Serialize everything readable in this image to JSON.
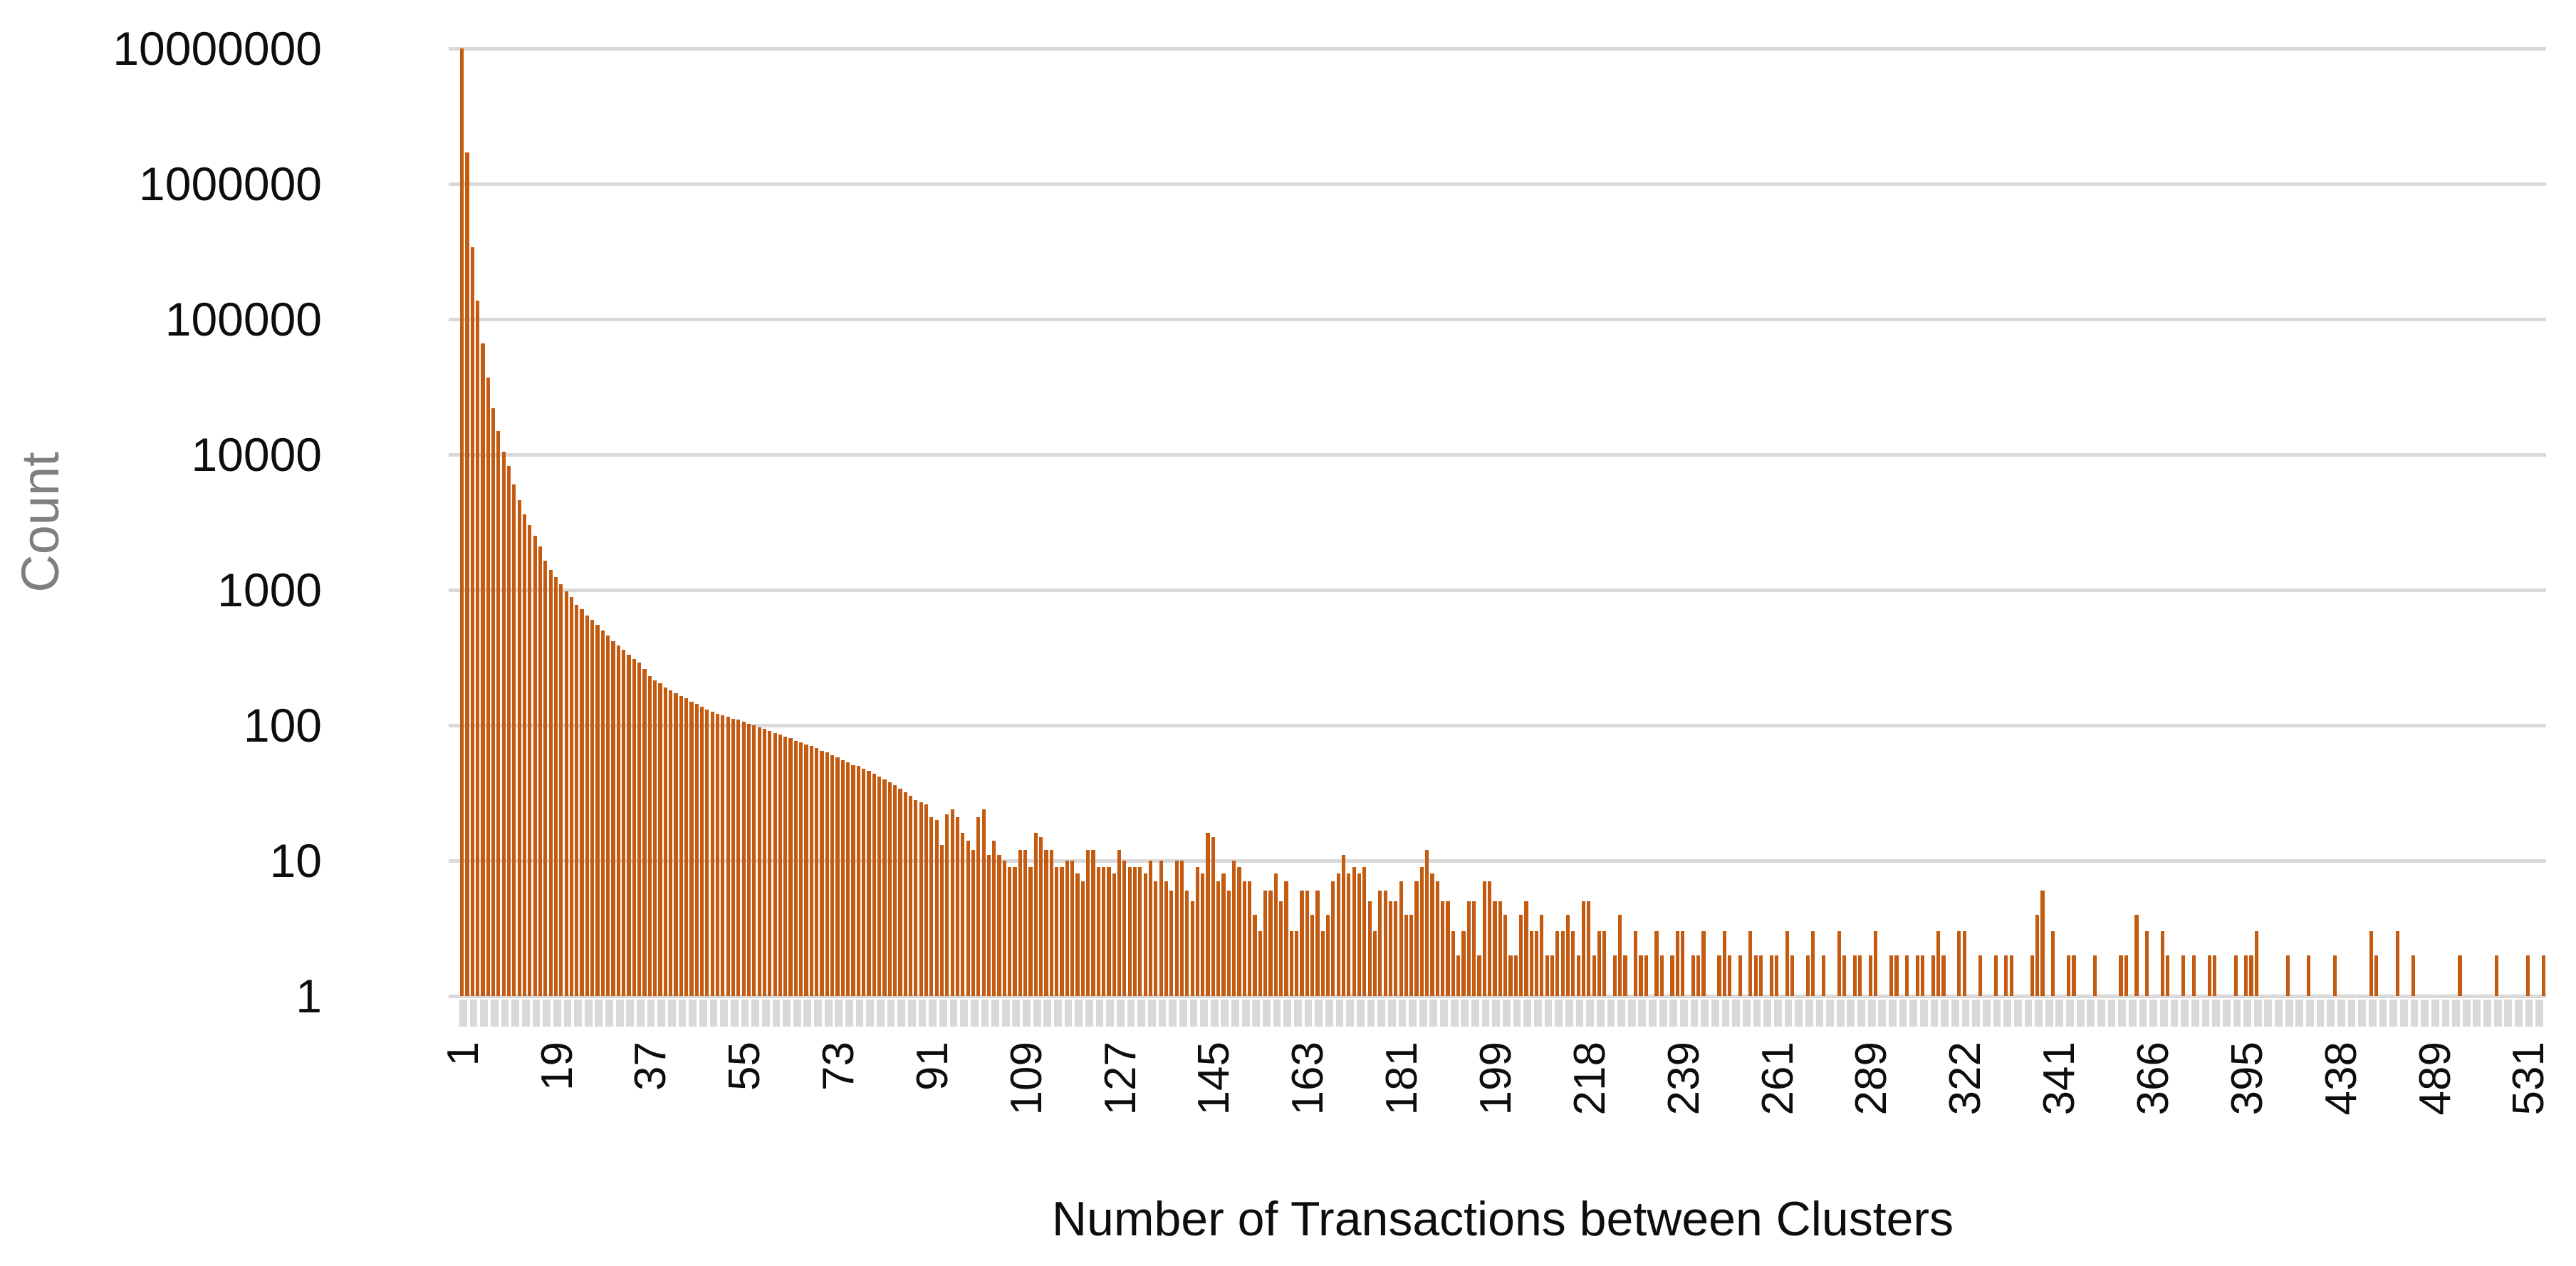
{
  "figure": {
    "y_axis_title": "Count",
    "x_axis_title": "Number of Transactions between Clusters"
  },
  "chart_data": {
    "type": "bar",
    "title": "",
    "xlabel": "Number of Transactions between Clusters",
    "ylabel": "Count",
    "y_scale": "log10",
    "ylim": [
      1,
      10000000
    ],
    "grid": "horizontal-log-decades",
    "legend_position": "none",
    "bar_color": "#C55A11",
    "gridline_color": "#D9D9D9",
    "axis_band_color": "#D9D9D9",
    "y_tick_labels": [
      "10000000",
      "1000000",
      "100000",
      "10000",
      "1000",
      "100",
      "10",
      "1"
    ],
    "x_tick_interval": 18,
    "x_tick_labels": [
      "1",
      "19",
      "37",
      "55",
      "73",
      "91",
      "109",
      "127",
      "145",
      "163",
      "181",
      "199",
      "218",
      "239",
      "261",
      "289",
      "322",
      "341",
      "366",
      "395",
      "438",
      "489",
      "531"
    ],
    "note_bars_with_count_one_have_zero_height_on_log_scale": true,
    "x": [
      1,
      2,
      3,
      4,
      5,
      6,
      7,
      8,
      9,
      10,
      11,
      12,
      13,
      14,
      15,
      16,
      17,
      18,
      19,
      20,
      21,
      22,
      23,
      24,
      25,
      26,
      27,
      28,
      29,
      30,
      31,
      32,
      33,
      34,
      35,
      36,
      37,
      38,
      39,
      40,
      41,
      42,
      43,
      44,
      45,
      46,
      47,
      48,
      49,
      50,
      51,
      52,
      53,
      54,
      55,
      56,
      57,
      58,
      59,
      60,
      61,
      62,
      63,
      64,
      65,
      66,
      67,
      68,
      69,
      70,
      71,
      72,
      73,
      74,
      75,
      76,
      77,
      78,
      79,
      80,
      81,
      82,
      83,
      84,
      85,
      86,
      87,
      88,
      89,
      90,
      91,
      92,
      93,
      94,
      95,
      96,
      97,
      98,
      99,
      100,
      101,
      102,
      103,
      104,
      105,
      106,
      107,
      108,
      109,
      110,
      111,
      112,
      113,
      114,
      115,
      116,
      117,
      118,
      119,
      120,
      121,
      122,
      123,
      124,
      125,
      126,
      127,
      128,
      129,
      130,
      131,
      132,
      133,
      134,
      135,
      136,
      137,
      138,
      139,
      140,
      141,
      142,
      143,
      144,
      145,
      146,
      147,
      148,
      149,
      150,
      151,
      152,
      153,
      154,
      155,
      156,
      157,
      158,
      159,
      160,
      161,
      162,
      163,
      164,
      165,
      166,
      167,
      168,
      169,
      170,
      171,
      172,
      173,
      174,
      175,
      176,
      177,
      178,
      179,
      180,
      181,
      182,
      183,
      184,
      185,
      186,
      187,
      188,
      189,
      190,
      191,
      192,
      193,
      194,
      195,
      196,
      197,
      198,
      199,
      200,
      201,
      202,
      203,
      204,
      205,
      206,
      207,
      208,
      209,
      210,
      211,
      212,
      213,
      214,
      215,
      216,
      218,
      219,
      220,
      221,
      222,
      224,
      225,
      226,
      227,
      228,
      230,
      231,
      232,
      233,
      234,
      236,
      237,
      238,
      239,
      240,
      241,
      242,
      244,
      245,
      246,
      247,
      248,
      250,
      251,
      252,
      253,
      254,
      256,
      257,
      258,
      259,
      261,
      262,
      263,
      265,
      266,
      267,
      269,
      270,
      272,
      273,
      275,
      276,
      278,
      279,
      281,
      282,
      284,
      286,
      289,
      291,
      293,
      295,
      297,
      299,
      301,
      302,
      304,
      306,
      308,
      310,
      312,
      314,
      316,
      318,
      319,
      320,
      322,
      323,
      324,
      325,
      326,
      327,
      328,
      329,
      330,
      331,
      332,
      334,
      335,
      336,
      337,
      338,
      339,
      340,
      341,
      342,
      343,
      345,
      346,
      348,
      349,
      351,
      352,
      354,
      355,
      357,
      358,
      360,
      361,
      363,
      364,
      365,
      366,
      367,
      369,
      370,
      372,
      373,
      375,
      376,
      378,
      380,
      381,
      383,
      384,
      386,
      387,
      389,
      391,
      393,
      395,
      397,
      399,
      402,
      404,
      407,
      409,
      412,
      414,
      417,
      419,
      422,
      424,
      427,
      429,
      432,
      434,
      436,
      438,
      441,
      444,
      447,
      450,
      453,
      456,
      459,
      462,
      465,
      468,
      471,
      474,
      477,
      480,
      483,
      486,
      488,
      489,
      491,
      493,
      496,
      498,
      501,
      503,
      506,
      508,
      511,
      513,
      516,
      518,
      521,
      523,
      526,
      528,
      530,
      531,
      535,
      540,
      546
    ],
    "counts": [
      10000000,
      1700000,
      340000,
      137000,
      66000,
      37000,
      22000,
      15000,
      10500,
      8200,
      6000,
      4600,
      3600,
      3000,
      2500,
      2100,
      1650,
      1400,
      1250,
      1100,
      980,
      890,
      780,
      720,
      650,
      600,
      550,
      500,
      460,
      420,
      390,
      360,
      330,
      310,
      290,
      260,
      230,
      215,
      205,
      190,
      180,
      172,
      165,
      158,
      150,
      143,
      137,
      131,
      126,
      121,
      118,
      115,
      112,
      110,
      106,
      103,
      100,
      97,
      94,
      91,
      88,
      85,
      82,
      80,
      77,
      75,
      72,
      70,
      68,
      65,
      63,
      60,
      58,
      55,
      53,
      51,
      50,
      48,
      46,
      44,
      42,
      40,
      38,
      36,
      34,
      32,
      30,
      28,
      27,
      26,
      21,
      20,
      13,
      22,
      24,
      21,
      16,
      14,
      12,
      21,
      24,
      11,
      14,
      11,
      10,
      9,
      9,
      12,
      12,
      9,
      16,
      15,
      12,
      12,
      9,
      9,
      10,
      10,
      8,
      7,
      12,
      12,
      9,
      9,
      9,
      8,
      12,
      10,
      9,
      9,
      9,
      8,
      10,
      7,
      10,
      7,
      6,
      10,
      10,
      6,
      5,
      9,
      8,
      16,
      15,
      7,
      8,
      6,
      10,
      9,
      7,
      7,
      4,
      3,
      6,
      6,
      8,
      5,
      7,
      3,
      3,
      6,
      6,
      4,
      6,
      3,
      4,
      7,
      8,
      11,
      8,
      9,
      8,
      9,
      5,
      3,
      6,
      6,
      5,
      5,
      7,
      4,
      4,
      7,
      9,
      12,
      8,
      7,
      5,
      5,
      3,
      2,
      3,
      5,
      5,
      2,
      7,
      7,
      5,
      5,
      4,
      2,
      2,
      4,
      5,
      3,
      3,
      4,
      2,
      2,
      3,
      3,
      4,
      3,
      2,
      5,
      5,
      2,
      3,
      3,
      1,
      2,
      4,
      2,
      1,
      3,
      2,
      2,
      1,
      3,
      2,
      1,
      2,
      3,
      3,
      1,
      2,
      2,
      3,
      1,
      1,
      2,
      3,
      2,
      1,
      2,
      1,
      3,
      2,
      2,
      1,
      2,
      2,
      1,
      3,
      2,
      1,
      1,
      2,
      3,
      1,
      2,
      1,
      1,
      3,
      2,
      1,
      2,
      2,
      1,
      2,
      3,
      1,
      1,
      2,
      2,
      1,
      2,
      1,
      2,
      2,
      1,
      2,
      3,
      2,
      1,
      1,
      3,
      3,
      1,
      1,
      2,
      1,
      1,
      2,
      1,
      2,
      2,
      1,
      1,
      1,
      2,
      4,
      6,
      1,
      3,
      1,
      1,
      2,
      2,
      1,
      1,
      1,
      2,
      1,
      1,
      1,
      1,
      2,
      2,
      1,
      4,
      1,
      3,
      1,
      1,
      3,
      2,
      1,
      1,
      2,
      1,
      2,
      1,
      1,
      2,
      2,
      1,
      1,
      1,
      2,
      1,
      2,
      2,
      3,
      1,
      1,
      1,
      1,
      1,
      2,
      1,
      1,
      1,
      2,
      1,
      1,
      1,
      1,
      2,
      1,
      1,
      1,
      1,
      1,
      1,
      3,
      2,
      1,
      1,
      1,
      3,
      1,
      1,
      2,
      1,
      1,
      1,
      1,
      1,
      1,
      1,
      1,
      2,
      1,
      1,
      1,
      1,
      1,
      1,
      2,
      1,
      1,
      1,
      1,
      1,
      2,
      1,
      1,
      2
    ]
  }
}
